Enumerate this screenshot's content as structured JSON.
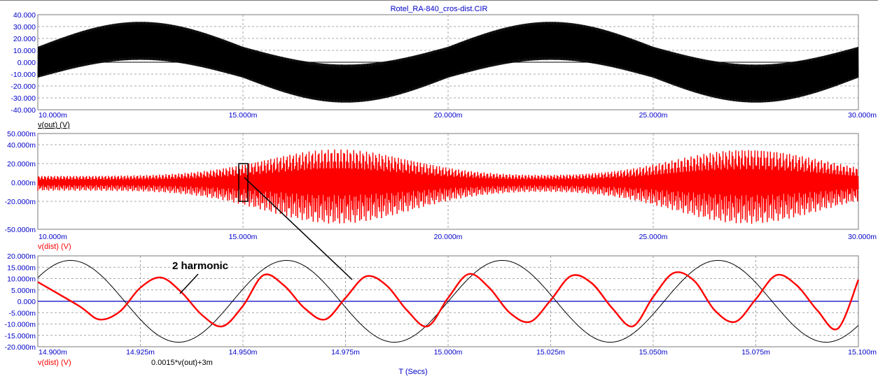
{
  "title": "Rotel_RA-840_cros-dist.CIR",
  "colors": {
    "accent_blue": "#0000c8",
    "trace_black": "#000000",
    "trace_red": "#ff0000",
    "grid": "#8c8c8c"
  },
  "chart_data": [
    {
      "type": "line",
      "panel": "top",
      "trace_label": "v(out) (V)",
      "x_ticks": [
        "10.000m",
        "15.000m",
        "20.000m",
        "25.000m",
        "30.000m"
      ],
      "y_ticks": [
        "40.000",
        "30.000",
        "20.000",
        "10.000",
        "0.000",
        "-10.000",
        "-20.000",
        "-30.000",
        "-40.000"
      ],
      "xlim": [
        0.01,
        0.03
      ],
      "ylim": [
        -40,
        40
      ],
      "grid": true,
      "series": [
        {
          "color": "#000000",
          "carrier_hz": 2000,
          "envelope_amplitude": 29,
          "envelope_period": 0.01,
          "envelope_phase_peak": 0.0125
        }
      ]
    },
    {
      "type": "line",
      "panel": "middle",
      "trace_label": "v(dist) (V)",
      "x_ticks": [
        "10.000m",
        "15.000m",
        "20.000m",
        "25.000m",
        "30.000m"
      ],
      "y_ticks": [
        "50.000m",
        "40.000m",
        "20.000m",
        "0.000m",
        "-20.000m",
        "-50.000m"
      ],
      "xlim": [
        0.01,
        0.03
      ],
      "ylim": [
        -0.05,
        0.05
      ],
      "grid": true,
      "series": [
        {
          "color": "#ff0000",
          "envelope_max": 0.035,
          "envelope_min": 0.0025,
          "envelope_peaks_x": [
            0.0173,
            0.0273
          ]
        }
      ]
    },
    {
      "type": "line",
      "panel": "bottom",
      "trace_labels": [
        "v(dist) (V)",
        "0.0015*v(out)+3m"
      ],
      "x_ticks": [
        "14.900m",
        "14.925m",
        "14.950m",
        "14.975m",
        "15.000m",
        "15.025m",
        "15.050m",
        "15.075m",
        "15.100m"
      ],
      "y_ticks": [
        "20.000m",
        "15.000m",
        "10.000m",
        "5.000m",
        "0.000",
        "-5.000m",
        "-10.000m",
        "-15.000m",
        "-20.000m"
      ],
      "xlim": [
        0.0149,
        0.0151
      ],
      "ylim": [
        -0.02,
        0.02
      ],
      "xlabel": "T (Secs)",
      "annotation": "2 harmonic",
      "grid": true,
      "series": [
        {
          "name": "v(dist)",
          "color": "#ff0000",
          "x": [
            0.0149,
            0.01491,
            0.014915,
            0.01492,
            0.014925,
            0.01493,
            0.014935,
            0.01494,
            0.014945,
            0.01495,
            0.014955,
            0.01496,
            0.014965,
            0.01497,
            0.014975,
            0.01498,
            0.014985,
            0.01499,
            0.014995,
            0.015,
            0.015005,
            0.01501,
            0.015015,
            0.01502,
            0.015025,
            0.01503,
            0.015035,
            0.01504,
            0.015045,
            0.01505,
            0.015055,
            0.01506,
            0.015065,
            0.01507,
            0.015075,
            0.01508,
            0.015085,
            0.01509,
            0.015095,
            0.0151
          ],
          "y": [
            0.0085,
            -0.002,
            -0.008,
            -0.0045,
            0.006,
            0.0105,
            0.004,
            -0.006,
            -0.011,
            -0.002,
            0.0115,
            0.007,
            -0.003,
            -0.008,
            0.0015,
            0.011,
            0.007,
            -0.004,
            -0.011,
            0.0015,
            0.012,
            0.006,
            -0.005,
            -0.009,
            0.0005,
            0.0112,
            0.008,
            -0.003,
            -0.011,
            0.002,
            0.0125,
            0.009,
            -0.004,
            -0.009,
            0.001,
            0.0115,
            0.007,
            -0.004,
            -0.012,
            0.0095
          ]
        },
        {
          "name": "0.0015*v(out)+3m",
          "color": "#000000",
          "x": [
            0.0149,
            0.0151
          ],
          "amplitude": 0.018,
          "period": 5.26e-05,
          "peaks_x": [
            0.014908,
            0.014961,
            0.015013,
            0.015066
          ]
        },
        {
          "name": "zero",
          "color": "#0000c8",
          "x": [
            0.0149,
            0.0151
          ],
          "y": [
            0,
            0
          ]
        }
      ]
    }
  ]
}
